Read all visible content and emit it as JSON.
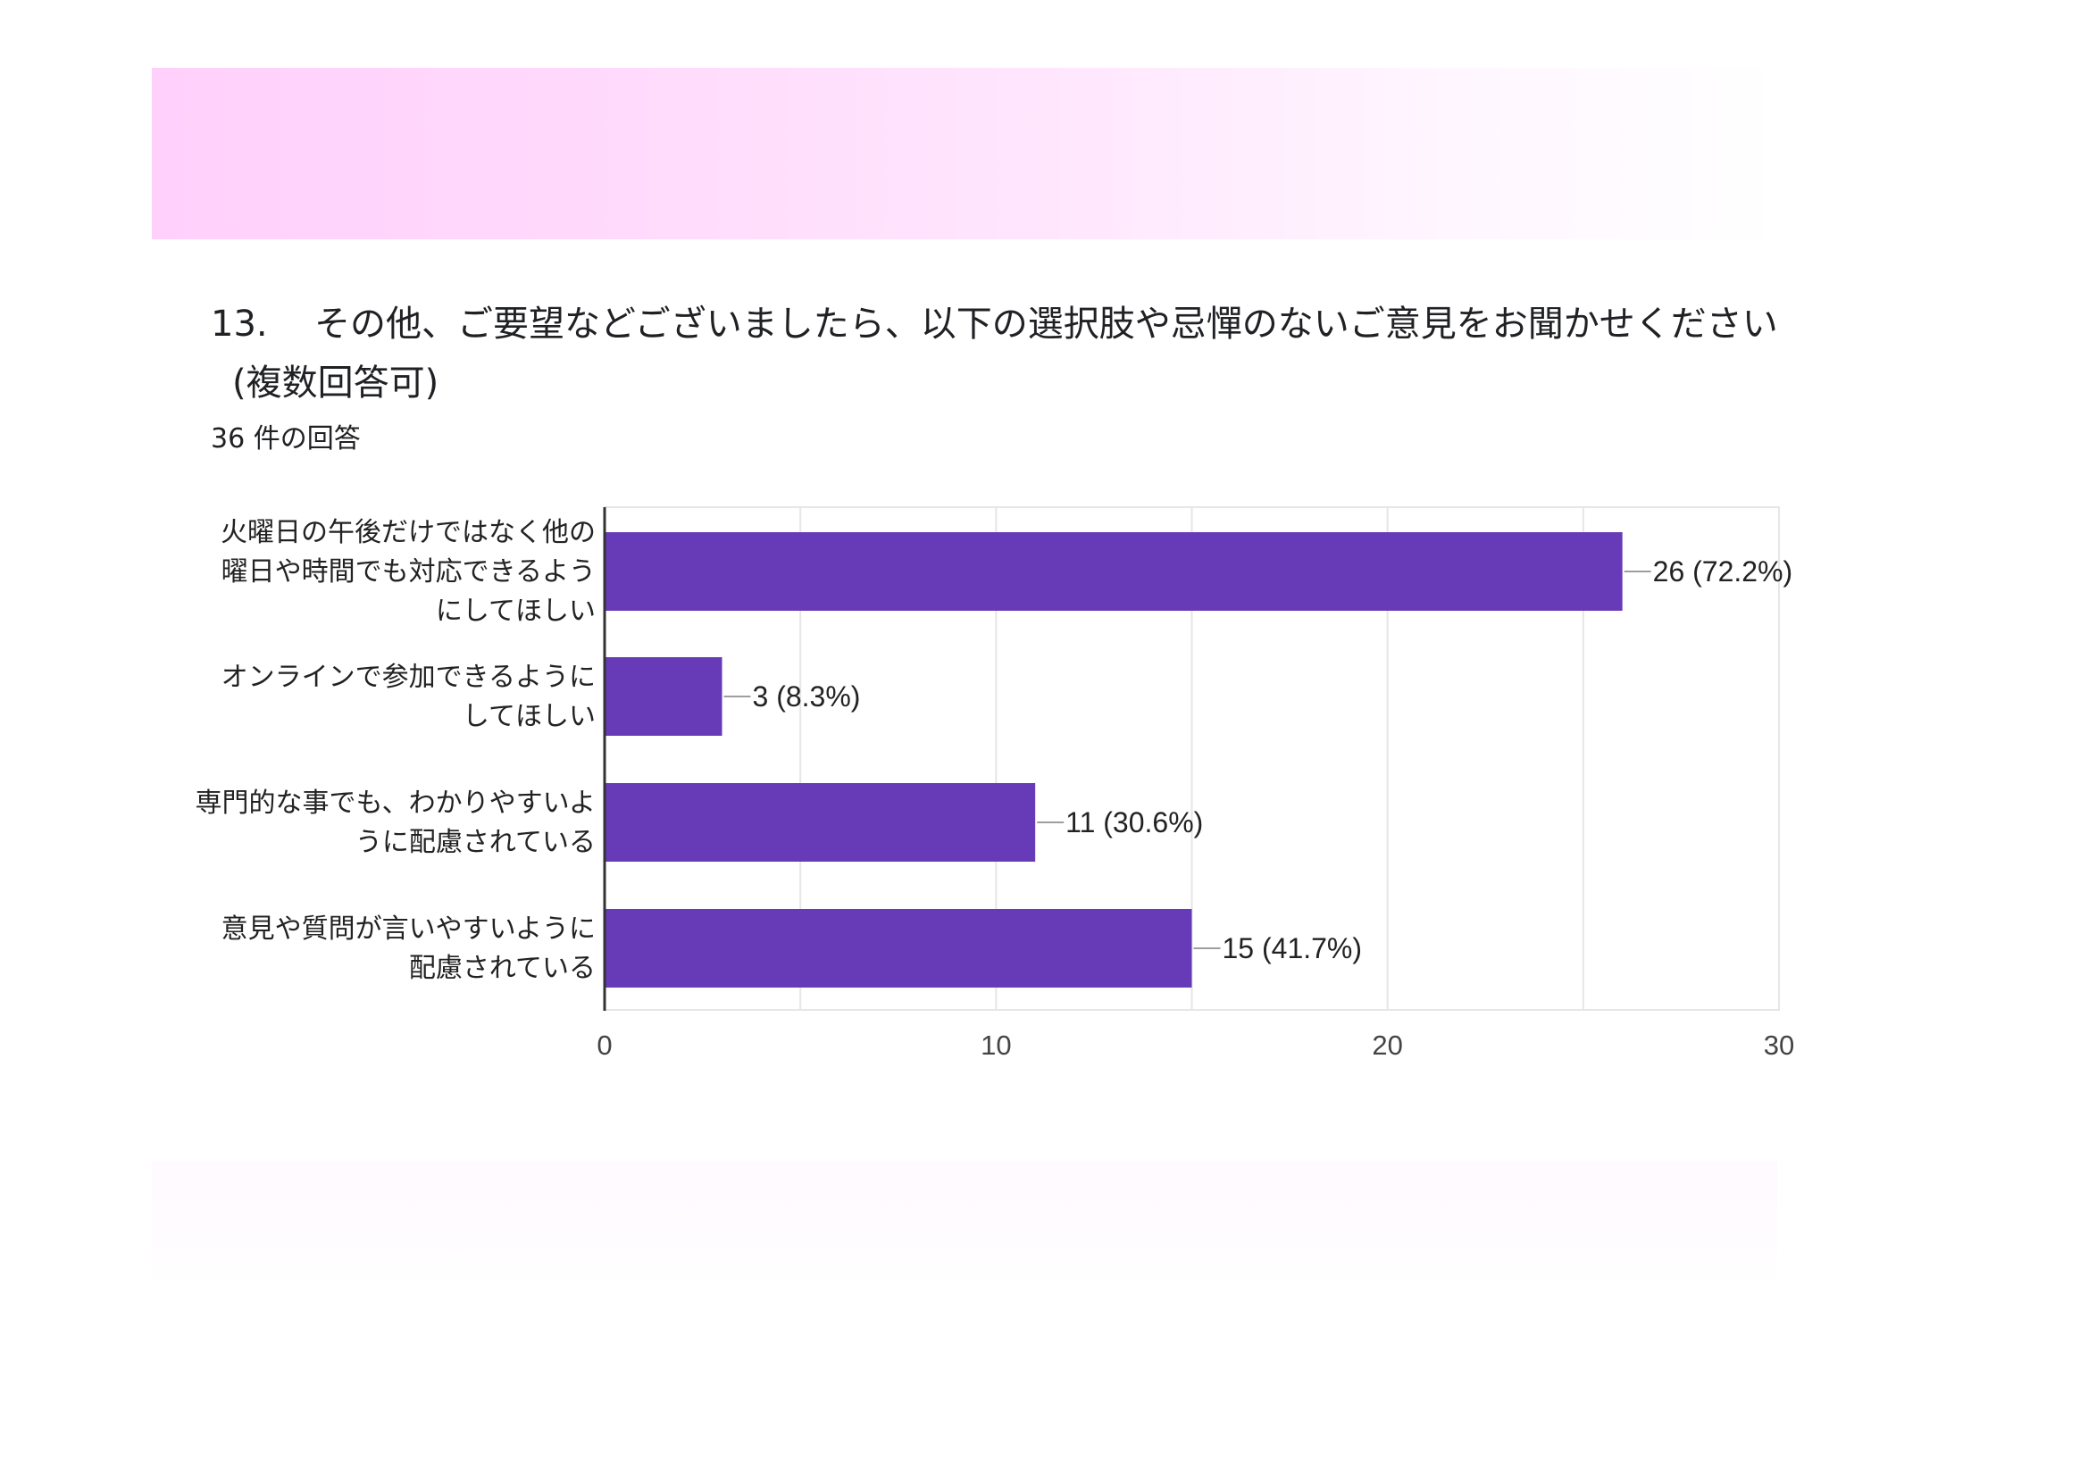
{
  "question": {
    "number": "13.",
    "line1": "その他、ご要望などございましたら、以下の選択肢や忌憚のないご意見をお聞かせください",
    "line2": "(複数回答可)",
    "response_count": "36 件の回答"
  },
  "colors": {
    "bar": "#673ab7",
    "grid": "#e6e6e6",
    "axis": "#333333",
    "leader": "#9e9e9e"
  },
  "chart_data": {
    "type": "bar",
    "orientation": "horizontal",
    "categories": [
      [
        "火曜日の午後だけではなく他の",
        "曜日や時間でも対応できるよう",
        "にしてほしい"
      ],
      [
        "オンラインで参加できるように",
        "してほしい"
      ],
      [
        "専門的な事でも、わかりやすいよ",
        "うに配慮されている"
      ],
      [
        "意見や質問が言いやすいように",
        "配慮されている"
      ]
    ],
    "values": [
      26,
      3,
      11,
      15
    ],
    "value_labels": [
      "26 (72.2%)",
      "3 (8.3%)",
      "11 (30.6%)",
      "15 (41.7%)"
    ],
    "xlim": [
      0,
      30
    ],
    "x_ticks": [
      0,
      10,
      20,
      30
    ],
    "grid": true,
    "legend": "none"
  }
}
